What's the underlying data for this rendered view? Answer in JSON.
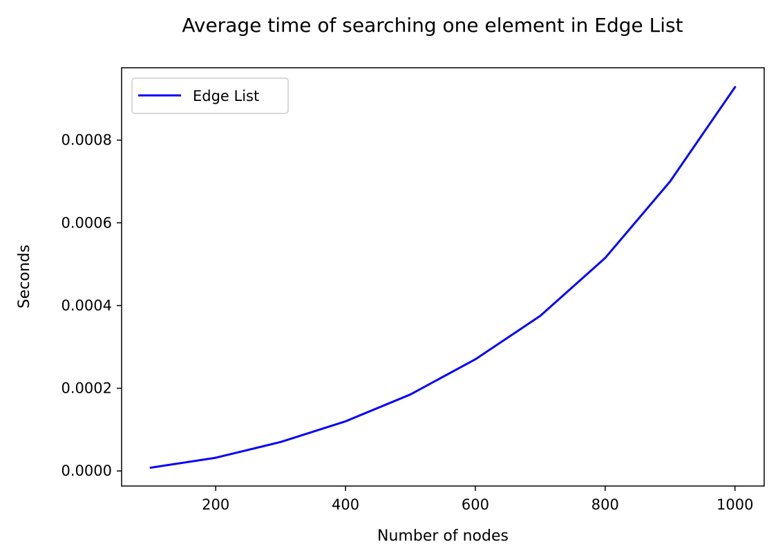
{
  "chart_data": {
    "type": "line",
    "title": "Average time of searching one element in Edge List",
    "xlabel": "Number of nodes",
    "ylabel": "Seconds",
    "x": [
      100,
      200,
      300,
      400,
      500,
      600,
      700,
      800,
      900,
      1000
    ],
    "series": [
      {
        "name": "Edge List",
        "color": "#0000ff",
        "values": [
          8e-06,
          3.2e-05,
          7e-05,
          0.00012,
          0.000185,
          0.00027,
          0.000375,
          0.000515,
          0.0007,
          0.000928
        ]
      }
    ],
    "xlim": [
      55,
      1045
    ],
    "ylim": [
      -3.64e-05,
      0.000975
    ],
    "xticks": [
      200,
      400,
      600,
      800,
      1000
    ],
    "xtick_labels": [
      "200",
      "400",
      "600",
      "800",
      "1000"
    ],
    "yticks": [
      0,
      0.0002,
      0.0004,
      0.0006,
      0.0008
    ],
    "ytick_labels": [
      "0.0000",
      "0.0002",
      "0.0004",
      "0.0006",
      "0.0008"
    ],
    "grid": false,
    "legend_position": "top-left"
  }
}
